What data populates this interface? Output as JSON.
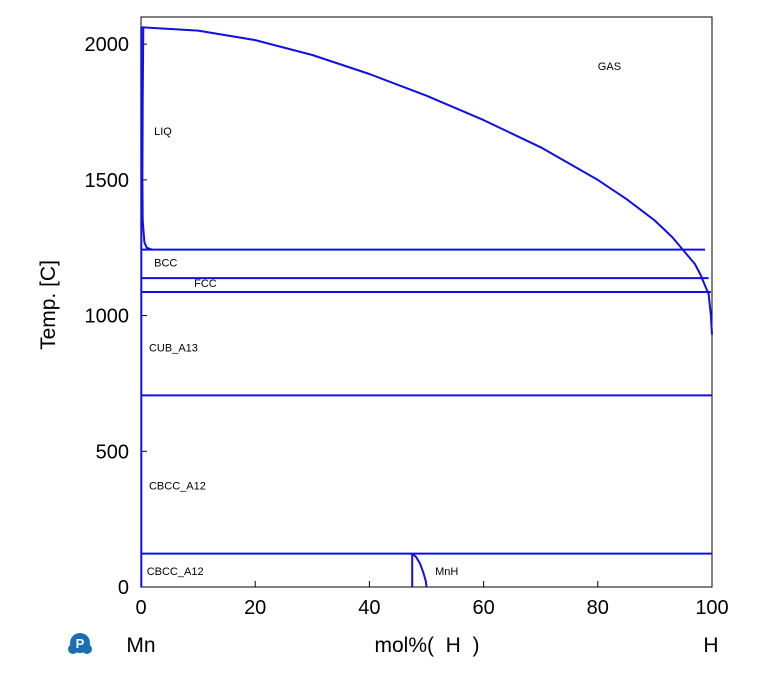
{
  "chart_data": {
    "type": "line",
    "xlabel": "mol%(  H  )",
    "ylabel": "Temp.  [C]",
    "xlim": [
      0,
      100
    ],
    "ylim": [
      0,
      2100
    ],
    "x_ticks": [
      "0",
      "20",
      "40",
      "60",
      "80",
      "100"
    ],
    "y_ticks": [
      "0",
      "500",
      "1000",
      "1500",
      "2000"
    ],
    "x_tick_values": [
      0,
      20,
      40,
      60,
      80,
      100
    ],
    "y_tick_values": [
      0,
      500,
      1000,
      1500,
      2000
    ],
    "left_component": "Mn",
    "right_component": "H",
    "line_color": "#1010e0",
    "grid": false,
    "series": [
      {
        "x": [
          0,
          10,
          20,
          30,
          40,
          50,
          60,
          70,
          80,
          85,
          90,
          93,
          95,
          97,
          98,
          98.8,
          99.4,
          99.8,
          100
        ],
        "y": [
          2062,
          2050,
          2015,
          1960,
          1890,
          1810,
          1720,
          1620,
          1500,
          1430,
          1350,
          1290,
          1240,
          1190,
          1150,
          1110,
          1080,
          1000,
          930
        ]
      },
      {
        "x": [
          0.4,
          0.3,
          0.25,
          0.3,
          0.6,
          1.0,
          1.6,
          2.0
        ],
        "y": [
          2062,
          1800,
          1500,
          1350,
          1270,
          1250,
          1245,
          1243
        ]
      },
      {
        "x": [
          0,
          98.8
        ],
        "y": [
          1243,
          1243
        ]
      },
      {
        "x": [
          0,
          99.4
        ],
        "y": [
          1138,
          1138
        ]
      },
      {
        "x": [
          0,
          99.8
        ],
        "y": [
          1087,
          1087
        ]
      },
      {
        "x": [
          0,
          100
        ],
        "y": [
          706,
          706
        ]
      },
      {
        "x": [
          0,
          100
        ],
        "y": [
          123,
          123
        ]
      },
      {
        "x": [
          47.5,
          47.5
        ],
        "y": [
          0,
          123
        ]
      },
      {
        "x": [
          47.5,
          48.2,
          48.9,
          49.5,
          49.9,
          50.0
        ],
        "y": [
          123,
          110,
          85,
          50,
          20,
          0
        ]
      },
      {
        "x": [
          0.05,
          0.05
        ],
        "y": [
          0,
          2062
        ]
      }
    ],
    "annotations": [
      {
        "text": "GAS",
        "x": 80,
        "y": 1905
      },
      {
        "text": "LIQ",
        "x": 2.3,
        "y": 1665
      },
      {
        "text": "BCC",
        "x": 2.3,
        "y": 1180
      },
      {
        "text": "FCC",
        "x": 9.3,
        "y": 1105
      },
      {
        "text": "CUB_A13",
        "x": 1.4,
        "y": 868
      },
      {
        "text": "CBCC_A12",
        "x": 1.4,
        "y": 360
      },
      {
        "text": "CBCC_A12",
        "x": 1.0,
        "y": 45
      },
      {
        "text": "MnH",
        "x": 51.5,
        "y": 45
      }
    ]
  }
}
